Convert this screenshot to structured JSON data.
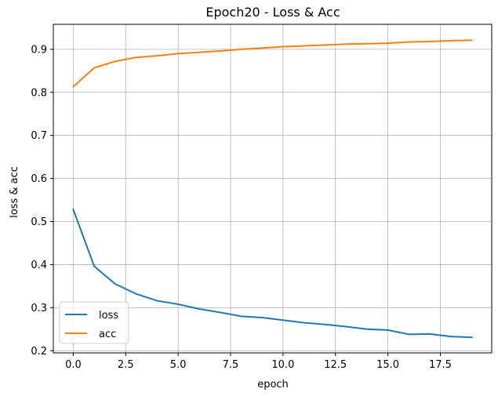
{
  "chart_data": {
    "type": "line",
    "title": "Epoch20 - Loss & Acc",
    "xlabel": "epoch",
    "ylabel": "loss & acc",
    "xlim": [
      -0.95,
      19.95
    ],
    "ylim": [
      0.195,
      0.958
    ],
    "xticks": [
      0.0,
      2.5,
      5.0,
      7.5,
      10.0,
      12.5,
      15.0,
      17.5
    ],
    "xtick_labels": [
      "0.0",
      "2.5",
      "5.0",
      "7.5",
      "10.0",
      "12.5",
      "15.0",
      "17.5"
    ],
    "yticks": [
      0.2,
      0.3,
      0.4,
      0.5,
      0.6,
      0.7,
      0.8,
      0.9
    ],
    "ytick_labels": [
      "0.2",
      "0.3",
      "0.4",
      "0.5",
      "0.6",
      "0.7",
      "0.8",
      "0.9"
    ],
    "grid": true,
    "legend_position": "lower-left",
    "x": [
      0,
      1,
      2,
      3,
      4,
      5,
      6,
      7,
      8,
      9,
      10,
      11,
      12,
      13,
      14,
      15,
      16,
      17,
      18,
      19
    ],
    "series": [
      {
        "name": "loss",
        "color": "#1f77b4",
        "values": [
          0.528,
          0.396,
          0.355,
          0.332,
          0.316,
          0.308,
          0.297,
          0.289,
          0.28,
          0.277,
          0.271,
          0.265,
          0.261,
          0.256,
          0.25,
          0.248,
          0.238,
          0.239,
          0.233,
          0.231
        ]
      },
      {
        "name": "acc",
        "color": "#ff7f0e",
        "values": [
          0.813,
          0.857,
          0.872,
          0.881,
          0.885,
          0.89,
          0.893,
          0.896,
          0.9,
          0.903,
          0.906,
          0.908,
          0.91,
          0.912,
          0.913,
          0.914,
          0.917,
          0.918,
          0.92,
          0.921
        ]
      }
    ]
  }
}
